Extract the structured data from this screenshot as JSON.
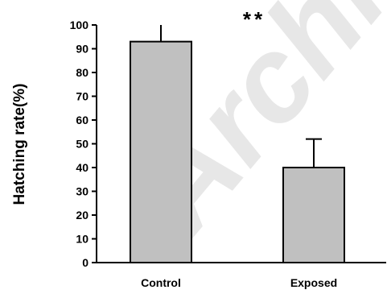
{
  "chart_data": {
    "type": "bar",
    "categories": [
      "Control",
      "Exposed"
    ],
    "values": [
      93,
      40
    ],
    "error_bars": [
      7,
      12
    ],
    "ylabel": "Hatching rate(%)",
    "xlabel": "",
    "ylim": [
      0,
      100
    ],
    "yticks": [
      0,
      10,
      20,
      30,
      40,
      50,
      60,
      70,
      80,
      90,
      100
    ],
    "grid": false,
    "annotation": "**",
    "bar_color": "#c0c0c0",
    "watermark": "Archive"
  }
}
